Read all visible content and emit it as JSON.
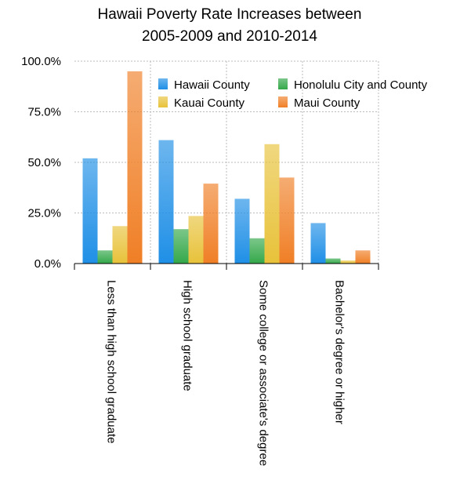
{
  "chart_data": {
    "type": "bar",
    "title": [
      "Hawaii Poverty Rate Increases between",
      "2005-2009 and 2010-2014"
    ],
    "categories": [
      "Less than high school graduate",
      "High school graduate",
      "Some college or associate's degree",
      "Bachelor's degree or higher"
    ],
    "series": [
      {
        "name": "Hawaii County",
        "color": "#1f8fe6",
        "values": [
          0.52,
          0.61,
          0.32,
          0.2
        ]
      },
      {
        "name": "Honolulu City and County",
        "color": "#34a84a",
        "values": [
          0.065,
          0.17,
          0.125,
          0.025
        ]
      },
      {
        "name": "Kauai County",
        "color": "#e8c23a",
        "values": [
          0.185,
          0.235,
          0.59,
          0.015
        ]
      },
      {
        "name": "Maui County",
        "color": "#f07f26",
        "values": [
          0.95,
          0.395,
          0.425,
          0.065
        ]
      }
    ],
    "yticks": [
      "0.0%",
      "25.0%",
      "50.0%",
      "75.0%",
      "100.0%"
    ],
    "ylim": [
      0,
      1
    ],
    "grid": true,
    "legend_position": "top-right"
  }
}
